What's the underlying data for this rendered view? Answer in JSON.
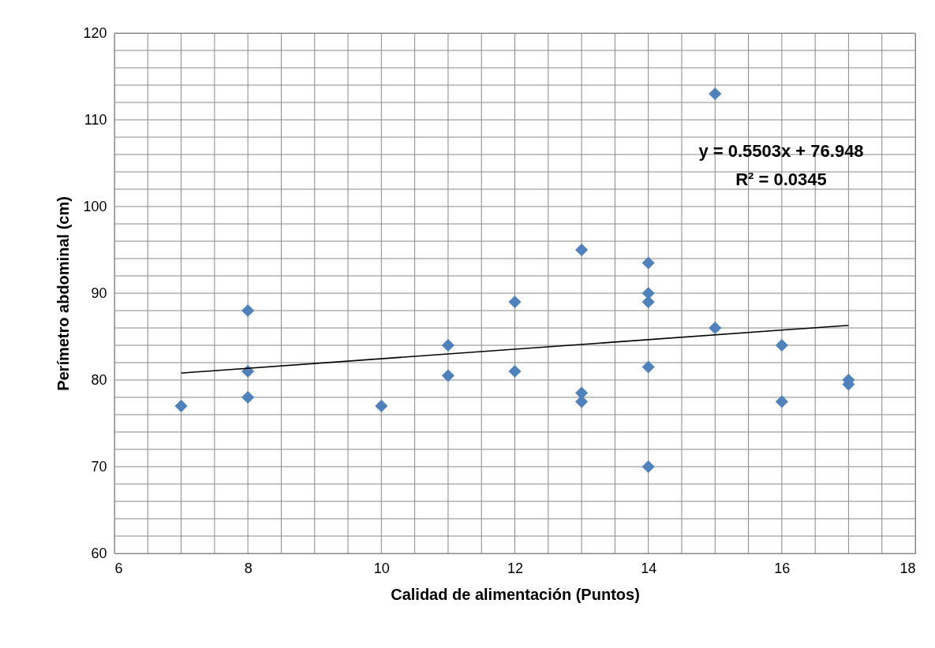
{
  "chart_data": {
    "type": "scatter",
    "xlabel": "Calidad de alimentación (Puntos)",
    "ylabel": "Perímetro abdominal (cm)",
    "annotations": [
      "y = 0.5503x + 76.948",
      "R² = 0.0345"
    ],
    "marker": "diamond",
    "grid": true,
    "xlim": [
      6,
      18
    ],
    "ylim": [
      60,
      120
    ],
    "xticks": [
      6,
      {
        "value": 6.5,
        "label": null
      },
      {
        "value": 7,
        "label": null
      },
      {
        "value": 7.5,
        "label": null
      },
      8,
      {
        "value": 8.5,
        "label": null
      },
      {
        "value": 9,
        "label": null
      },
      {
        "value": 9.5,
        "label": null
      },
      10,
      {
        "value": 10.5,
        "label": null
      },
      {
        "value": 11,
        "label": null
      },
      {
        "value": 11.5,
        "label": null
      },
      12,
      {
        "value": 12.5,
        "label": null
      },
      {
        "value": 13,
        "label": null
      },
      {
        "value": 13.5,
        "label": null
      },
      14,
      {
        "value": 14.5,
        "label": null
      },
      {
        "value": 15,
        "label": null
      },
      {
        "value": 15.5,
        "label": null
      },
      16,
      {
        "value": 16.5,
        "label": null
      },
      {
        "value": 17,
        "label": null
      },
      {
        "value": 17.5,
        "label": null
      },
      18
    ],
    "yticks": [
      60,
      {
        "value": 62,
        "label": null
      },
      {
        "value": 64,
        "label": null
      },
      {
        "value": 66,
        "label": null
      },
      {
        "value": 68,
        "label": null
      },
      70,
      {
        "value": 72,
        "label": null
      },
      {
        "value": 74,
        "label": null
      },
      {
        "value": 76,
        "label": null
      },
      {
        "value": 78,
        "label": null
      },
      80,
      {
        "value": 82,
        "label": null
      },
      {
        "value": 84,
        "label": null
      },
      {
        "value": 86,
        "label": null
      },
      {
        "value": 88,
        "label": null
      },
      90,
      {
        "value": 92,
        "label": null
      },
      {
        "value": 94,
        "label": null
      },
      {
        "value": 96,
        "label": null
      },
      {
        "value": 98,
        "label": null
      },
      100,
      {
        "value": 102,
        "label": null
      },
      {
        "value": 104,
        "label": null
      },
      {
        "value": 106,
        "label": null
      },
      {
        "value": 108,
        "label": null
      },
      110,
      {
        "value": 112,
        "label": null
      },
      {
        "value": 114,
        "label": null
      },
      {
        "value": 116,
        "label": null
      },
      {
        "value": 118,
        "label": null
      },
      120
    ],
    "series": [
      {
        "type": "scatter",
        "color": "#4f81bd",
        "x": [
          7,
          8,
          8,
          8,
          10,
          11,
          11,
          12,
          12,
          13,
          13,
          13,
          14,
          14,
          14,
          14,
          14,
          15,
          15,
          16,
          16,
          17,
          17
        ],
        "values": [
          77,
          88,
          81,
          78,
          77,
          84,
          80.5,
          89,
          81,
          95,
          78.5,
          77.5,
          93.5,
          90,
          89,
          81.5,
          70,
          113,
          86,
          84,
          77.5,
          80,
          79.5
        ]
      },
      {
        "type": "line",
        "marker": "none",
        "color": "#000000",
        "x": [
          7,
          17
        ],
        "values": [
          80.8,
          86.3
        ]
      }
    ]
  }
}
